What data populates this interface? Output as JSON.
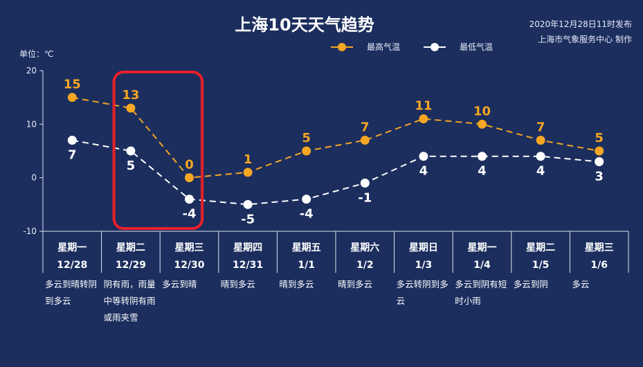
{
  "header": {
    "title": "上海10天天气趋势",
    "publish_time": "2020年12月28日11时发布",
    "publisher": "上海市气象服务中心 制作"
  },
  "colors": {
    "background": "#1b2e5e",
    "high": "#f5a623",
    "low": "#ffffff",
    "highlight": "#e8202a"
  },
  "legend": {
    "high": "最高气温",
    "low": "最低气温"
  },
  "chart_data": {
    "type": "line",
    "title": "上海10天天气趋势",
    "ylabel": "单位：℃",
    "ylim": [
      -10,
      20
    ],
    "yticks": [
      -10,
      0,
      10,
      20
    ],
    "legend_position": "top-right",
    "grid": false,
    "categories": [
      {
        "weekday": "星期一",
        "date": "12/28",
        "weather": "多云到晴转阴到多云"
      },
      {
        "weekday": "星期二",
        "date": "12/29",
        "weather": "阴有雨，雨量中等转阴有雨或雨夹雪"
      },
      {
        "weekday": "星期三",
        "date": "12/30",
        "weather": "多云到晴"
      },
      {
        "weekday": "星期四",
        "date": "12/31",
        "weather": "晴到多云"
      },
      {
        "weekday": "星期五",
        "date": "1/1",
        "weather": "晴到多云"
      },
      {
        "weekday": "星期六",
        "date": "1/2",
        "weather": "晴到多云"
      },
      {
        "weekday": "星期日",
        "date": "1/3",
        "weather": "多云转阴到多云"
      },
      {
        "weekday": "星期一",
        "date": "1/4",
        "weather": "多云到阴有短时小雨"
      },
      {
        "weekday": "星期二",
        "date": "1/5",
        "weather": "多云到阴"
      },
      {
        "weekday": "星期三",
        "date": "1/6",
        "weather": "多云"
      }
    ],
    "series": [
      {
        "name": "最高气温",
        "values": [
          15,
          13,
          0,
          1,
          5,
          7,
          11,
          10,
          7,
          5
        ]
      },
      {
        "name": "最低气温",
        "values": [
          7,
          5,
          -4,
          -5,
          -4,
          -1,
          4,
          4,
          4,
          3
        ]
      }
    ],
    "highlight_range": [
      "12/29",
      "12/30"
    ]
  }
}
